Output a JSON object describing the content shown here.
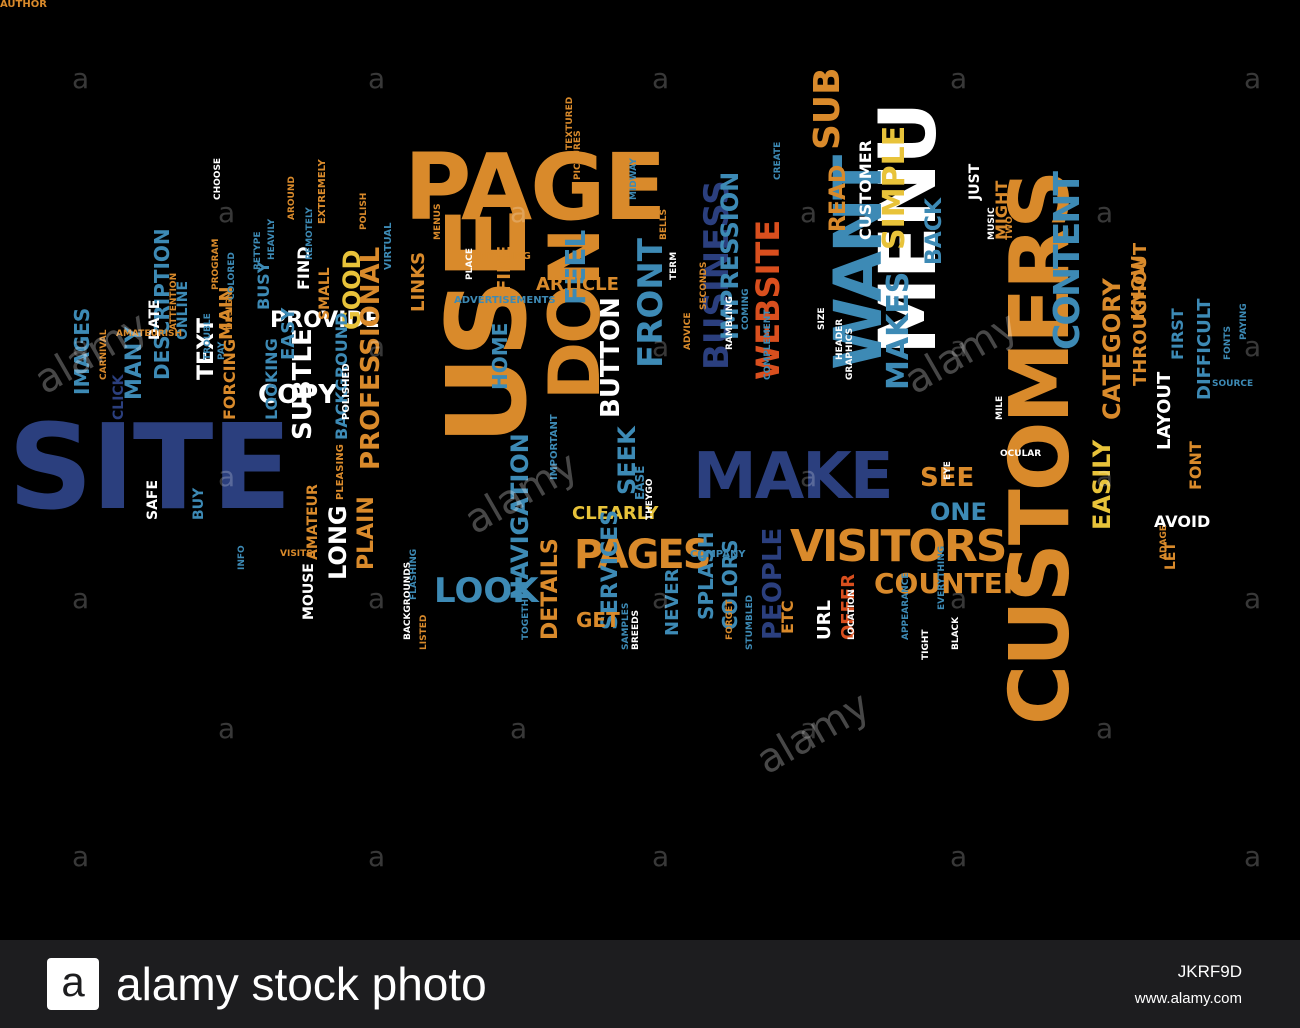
{
  "word_cloud": {
    "colors": {
      "background": "#000000",
      "orange": "#d98a2b",
      "navy": "#2b3f7e",
      "steel_blue": "#3d8ab5",
      "white": "#ffffff",
      "red_orange": "#d94f1e",
      "yellow": "#e8c33a",
      "gray_blue": "#4a6478"
    },
    "words": [
      {
        "text": "SITE",
        "color": "navy"
      },
      {
        "text": "PAGE",
        "color": "orange"
      },
      {
        "text": "USE",
        "color": "orange"
      },
      {
        "text": "CUSTOMERS",
        "color": "orange"
      },
      {
        "text": "MENU",
        "color": "white"
      },
      {
        "text": "MAKE",
        "color": "navy"
      },
      {
        "text": "WANT",
        "color": "steel_blue"
      },
      {
        "text": "DON",
        "color": "orange"
      },
      {
        "text": "VISITORS",
        "color": "orange"
      },
      {
        "text": "PAGES",
        "color": "orange"
      },
      {
        "text": "CONTENT",
        "color": "steel_blue"
      },
      {
        "text": "BUSINESS",
        "color": "navy"
      },
      {
        "text": "WEBSITE",
        "color": "red_orange"
      },
      {
        "text": "SUB",
        "color": "orange"
      },
      {
        "text": "FRONT",
        "color": "steel_blue"
      },
      {
        "text": "IMPRESSION",
        "color": "steel_blue"
      },
      {
        "text": "SIMPLE",
        "color": "yellow"
      },
      {
        "text": "BUTTON",
        "color": "white"
      },
      {
        "text": "MAKES",
        "color": "steel_blue"
      },
      {
        "text": "NAVIGATION",
        "color": "steel_blue"
      },
      {
        "text": "LOOK",
        "color": "steel_blue"
      },
      {
        "text": "SEEK",
        "color": "steel_blue"
      },
      {
        "text": "FEEL",
        "color": "steel_blue"
      },
      {
        "text": "COUNTER",
        "color": "orange"
      },
      {
        "text": "CATEGORY",
        "color": "orange"
      },
      {
        "text": "EASILY",
        "color": "yellow"
      },
      {
        "text": "SEE",
        "color": "orange"
      },
      {
        "text": "ONE",
        "color": "steel_blue"
      },
      {
        "text": "BACK",
        "color": "steel_blue"
      },
      {
        "text": "READ",
        "color": "orange"
      },
      {
        "text": "CUSTOMER",
        "color": "white"
      },
      {
        "text": "KNOW",
        "color": "orange"
      },
      {
        "text": "COPY",
        "color": "white"
      },
      {
        "text": "PROVIDE",
        "color": "white"
      },
      {
        "text": "GOOD",
        "color": "yellow"
      },
      {
        "text": "PROFESSIONAL",
        "color": "orange"
      },
      {
        "text": "PLAIN",
        "color": "orange"
      },
      {
        "text": "LONG",
        "color": "white"
      },
      {
        "text": "SUBTLE",
        "color": "white"
      },
      {
        "text": "TEXT",
        "color": "white"
      },
      {
        "text": "DESCRIPTION",
        "color": "steel_blue"
      },
      {
        "text": "MAIN",
        "color": "orange"
      },
      {
        "text": "MANY",
        "color": "steel_blue"
      },
      {
        "text": "IMAGES",
        "color": "steel_blue"
      },
      {
        "text": "HOME",
        "color": "steel_blue"
      },
      {
        "text": "ARTICLE",
        "color": "orange"
      },
      {
        "text": "FINE",
        "color": "orange"
      },
      {
        "text": "LINKS",
        "color": "orange"
      },
      {
        "text": "CLEARLY",
        "color": "yellow"
      },
      {
        "text": "SERVICES",
        "color": "steel_blue"
      },
      {
        "text": "DETAILS",
        "color": "orange"
      },
      {
        "text": "GET",
        "color": "orange"
      },
      {
        "text": "PEOPLE",
        "color": "navy"
      },
      {
        "text": "COLORS",
        "color": "steel_blue"
      },
      {
        "text": "SPLASH",
        "color": "steel_blue"
      },
      {
        "text": "NEVER",
        "color": "steel_blue"
      },
      {
        "text": "ETC",
        "color": "orange"
      },
      {
        "text": "URL",
        "color": "white"
      },
      {
        "text": "OFFER",
        "color": "red_orange"
      },
      {
        "text": "DIFFICULT",
        "color": "steel_blue"
      },
      {
        "text": "LAYOUT",
        "color": "white"
      },
      {
        "text": "THROUGHOUT",
        "color": "orange"
      },
      {
        "text": "FIRST",
        "color": "steel_blue"
      },
      {
        "text": "AVOID",
        "color": "white"
      },
      {
        "text": "LET",
        "color": "orange"
      },
      {
        "text": "FONT",
        "color": "orange"
      },
      {
        "text": "MIGHT",
        "color": "orange"
      },
      {
        "text": "JUST",
        "color": "white"
      },
      {
        "text": "FIND",
        "color": "white"
      },
      {
        "text": "EASY",
        "color": "steel_blue"
      },
      {
        "text": "LOOKING",
        "color": "steel_blue"
      },
      {
        "text": "BUSY",
        "color": "steel_blue"
      },
      {
        "text": "FORCING",
        "color": "orange"
      },
      {
        "text": "SMALL",
        "color": "orange"
      },
      {
        "text": "BACKGROUND",
        "color": "steel_blue"
      },
      {
        "text": "AMATEUR",
        "color": "orange"
      },
      {
        "text": "MOUSE",
        "color": "white"
      },
      {
        "text": "SAFE",
        "color": "white"
      },
      {
        "text": "BUY",
        "color": "steel_blue"
      },
      {
        "text": "CLICK",
        "color": "navy"
      },
      {
        "text": "DATE",
        "color": "white"
      },
      {
        "text": "ONLINE",
        "color": "steel_blue"
      },
      {
        "text": "EASE",
        "color": "steel_blue"
      },
      {
        "text": "IMPORTANT",
        "color": "steel_blue"
      },
      {
        "text": "COMPANY",
        "color": "steel_blue"
      },
      {
        "text": "POLISHED",
        "color": "white"
      },
      {
        "text": "ADVERTISEMENTS",
        "color": "steel_blue"
      },
      {
        "text": "ANYTHING",
        "color": "orange"
      },
      {
        "text": "PLEASING",
        "color": "orange"
      },
      {
        "text": "VIRTUAL",
        "color": "steel_blue"
      },
      {
        "text": "EXTREMELY",
        "color": "orange"
      },
      {
        "text": "REMOTELY",
        "color": "steel_blue"
      },
      {
        "text": "HEAVILY",
        "color": "steel_blue"
      },
      {
        "text": "RETYPE",
        "color": "steel_blue"
      },
      {
        "text": "COLORED",
        "color": "steel_blue"
      },
      {
        "text": "PROGRAM",
        "color": "orange"
      },
      {
        "text": "DESIGN",
        "color": "orange"
      },
      {
        "text": "AMATEURISH",
        "color": "orange"
      },
      {
        "text": "ATTENTION",
        "color": "orange"
      },
      {
        "text": "CARNIVAL",
        "color": "orange"
      },
      {
        "text": "TROUBLE",
        "color": "steel_blue"
      },
      {
        "text": "PAY",
        "color": "steel_blue"
      },
      {
        "text": "INFO",
        "color": "steel_blue"
      },
      {
        "text": "VISITS",
        "color": "orange"
      },
      {
        "text": "BACKGROUNDS",
        "color": "white"
      },
      {
        "text": "LISTED",
        "color": "orange"
      },
      {
        "text": "TOGETHER",
        "color": "steel_blue"
      },
      {
        "text": "SAMPLES",
        "color": "steel_blue"
      },
      {
        "text": "BREEDS",
        "color": "white"
      },
      {
        "text": "FORGET",
        "color": "orange"
      },
      {
        "text": "STUMBLED",
        "color": "steel_blue"
      },
      {
        "text": "RAMBLING",
        "color": "white"
      },
      {
        "text": "COMPLEMENT",
        "color": "steel_blue"
      },
      {
        "text": "HEADER",
        "color": "white"
      },
      {
        "text": "SIZE",
        "color": "white"
      },
      {
        "text": "GRAPHICS",
        "color": "white"
      },
      {
        "text": "LOCATION",
        "color": "white"
      },
      {
        "text": "COMING",
        "color": "steel_blue"
      },
      {
        "text": "CREATE",
        "color": "steel_blue"
      },
      {
        "text": "SECONDS",
        "color": "orange"
      },
      {
        "text": "TERM",
        "color": "white"
      },
      {
        "text": "BELLS",
        "color": "orange"
      },
      {
        "text": "ADVICE",
        "color": "orange"
      },
      {
        "text": "THEYGO",
        "color": "white"
      },
      {
        "text": "MIDWAY",
        "color": "steel_blue"
      },
      {
        "text": "PICTURES",
        "color": "orange"
      },
      {
        "text": "TEXTURED",
        "color": "orange"
      },
      {
        "text": "AROUND",
        "color": "orange"
      },
      {
        "text": "POLISH",
        "color": "orange"
      },
      {
        "text": "CHOOSE",
        "color": "white"
      },
      {
        "text": "MENUS",
        "color": "orange"
      },
      {
        "text": "PLACE",
        "color": "white"
      },
      {
        "text": "MILE",
        "color": "white"
      },
      {
        "text": "OCULAR",
        "color": "white"
      },
      {
        "text": "EYE",
        "color": "white"
      },
      {
        "text": "EVERYTHING",
        "color": "steel_blue"
      },
      {
        "text": "APPEARANCE",
        "color": "steel_blue"
      },
      {
        "text": "TIGHT",
        "color": "white"
      },
      {
        "text": "BLACK",
        "color": "white"
      },
      {
        "text": "MUSIC",
        "color": "white"
      },
      {
        "text": "TWO",
        "color": "orange"
      },
      {
        "text": "ADAGE",
        "color": "orange"
      },
      {
        "text": "FONTS",
        "color": "steel_blue"
      },
      {
        "text": "PAYING",
        "color": "steel_blue"
      },
      {
        "text": "SOURCE",
        "color": "steel_blue"
      },
      {
        "text": "FLASHING",
        "color": "steel_blue"
      },
      {
        "text": "AUTHOR",
        "color": "orange"
      }
    ]
  },
  "watermark": {
    "letter": "a",
    "word": "alamy"
  },
  "footer": {
    "logo_letter": "a",
    "brand_text": "alamy stock photo",
    "image_id": "JKRF9D",
    "site_url": "www.alamy.com"
  }
}
